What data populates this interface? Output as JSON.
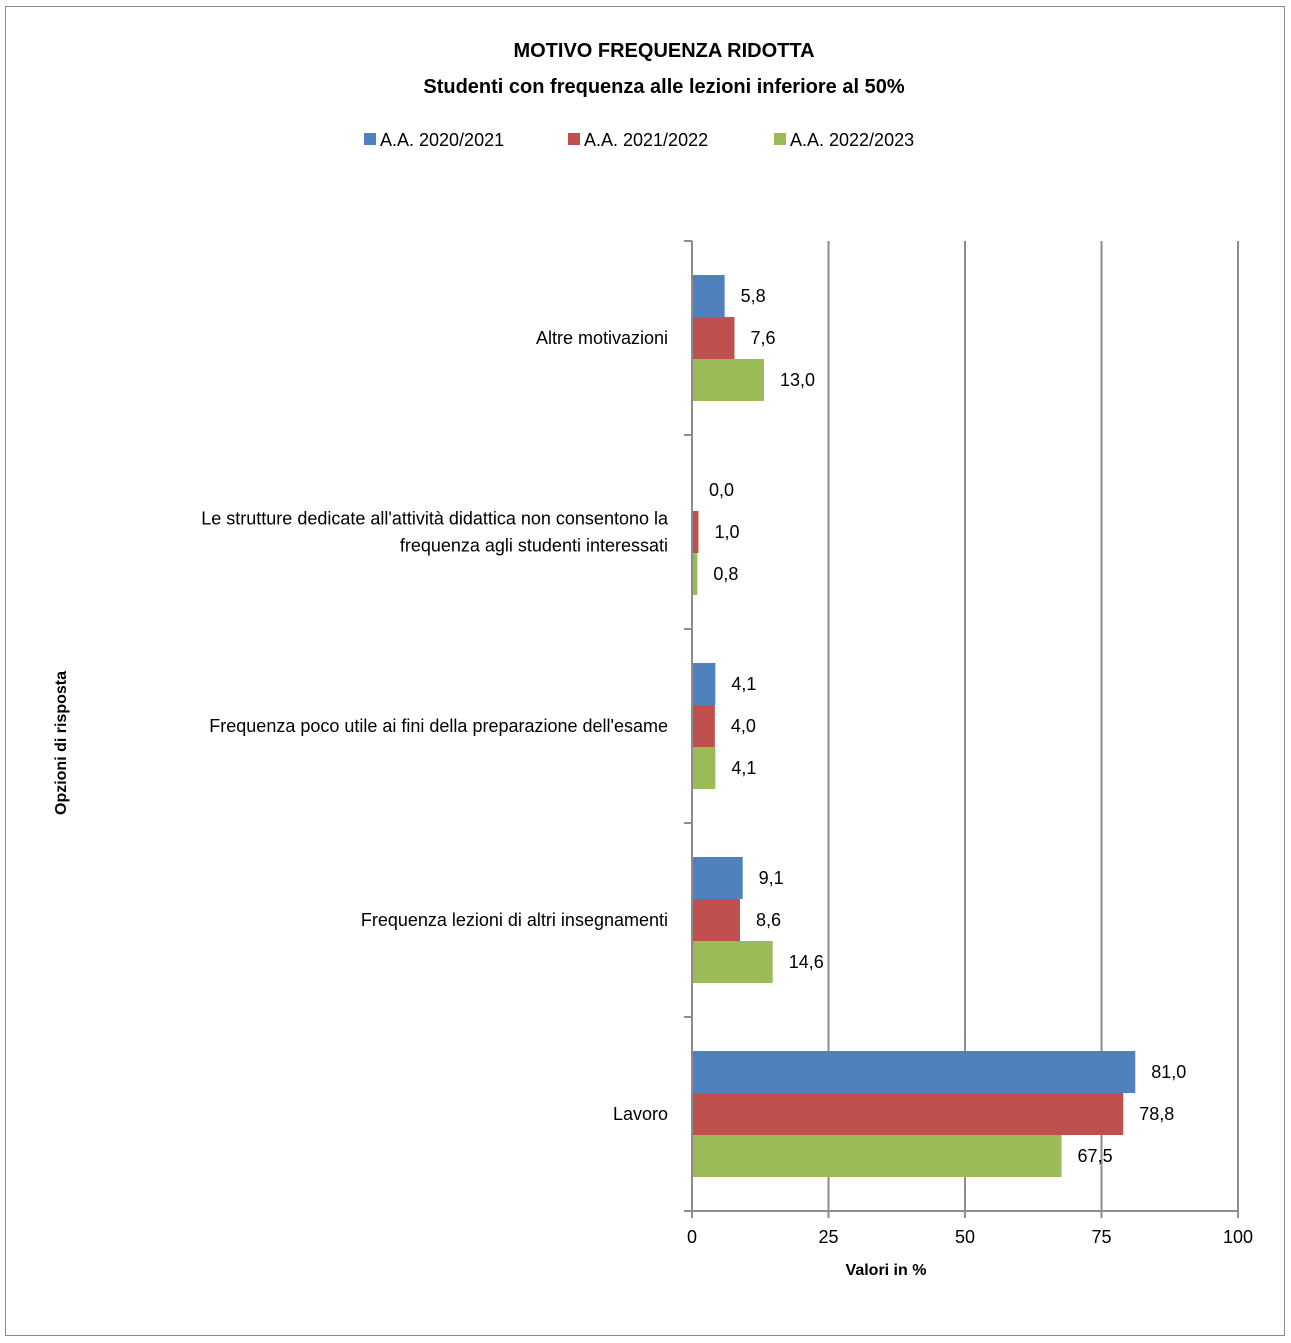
{
  "chart_data": {
    "type": "bar",
    "orientation": "horizontal",
    "title": "MOTIVO FREQUENZA RIDOTTA",
    "subtitle": "Studenti con frequenza alle lezioni  inferiore  al 50%",
    "xlabel": "Valori in %",
    "ylabel": "Opzioni di risposta",
    "xlim": [
      0,
      100
    ],
    "xticks": [
      "0",
      "25",
      "50",
      "75",
      "100"
    ],
    "grid": true,
    "legend_position": "top",
    "categories": [
      "Altre motivazioni",
      "Le strutture dedicate all'attività didattica non consentono la frequenza agli studenti interessati",
      "Frequenza poco utile ai fini della preparazione dell'esame",
      "Frequenza lezioni di altri insegnamenti",
      "Lavoro"
    ],
    "category_lines": [
      [
        "Altre motivazioni"
      ],
      [
        "Le strutture dedicate all'attività didattica non consentono la",
        "frequenza agli studenti interessati"
      ],
      [
        "Frequenza poco utile ai fini della preparazione dell'esame"
      ],
      [
        "Frequenza lezioni di altri insegnamenti"
      ],
      [
        "Lavoro"
      ]
    ],
    "series": [
      {
        "name": "A.A. 2020/2021",
        "color": "#4f81bd",
        "values": [
          5.8,
          0.0,
          4.1,
          9.1,
          81.0
        ],
        "labels": [
          "5,8",
          "0,0",
          "4,1",
          "9,1",
          "81,0"
        ]
      },
      {
        "name": "A.A. 2021/2022",
        "color": "#c0504d",
        "values": [
          7.6,
          1.0,
          4.0,
          8.6,
          78.8
        ],
        "labels": [
          "7,6",
          "1,0",
          "4,0",
          "8,6",
          "78,8"
        ]
      },
      {
        "name": "A.A. 2022/2023",
        "color": "#9bbb59",
        "values": [
          13.0,
          0.8,
          4.1,
          14.6,
          67.5
        ],
        "labels": [
          "13,0",
          "0,8",
          "4,1",
          "14,6",
          "67,5"
        ]
      }
    ]
  }
}
